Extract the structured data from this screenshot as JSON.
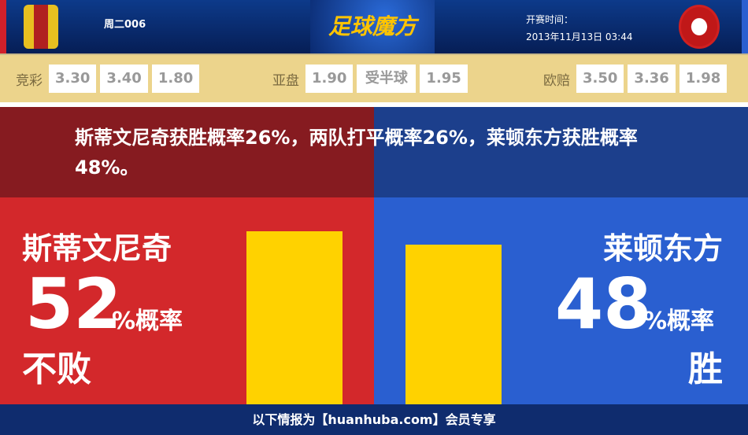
{
  "header": {
    "match_no": "周二006",
    "brand": "足球魔方",
    "time_label": "开赛时间：",
    "time_value": "2013年11月13日 03:44"
  },
  "odds": {
    "jingcai": {
      "label": "竞彩",
      "values": [
        "3.30",
        "3.40",
        "1.80"
      ]
    },
    "yapan": {
      "label": "亚盘",
      "values": [
        "1.90",
        "受半球",
        "1.95"
      ]
    },
    "ouzhou": {
      "label": "欧赔",
      "values": [
        "3.50",
        "3.36",
        "1.98"
      ]
    }
  },
  "summary": "斯蒂文尼奇获胜概率26%，两队打平概率26%，莱顿东方获胜概率48%。",
  "home": {
    "name": "斯蒂文尼奇",
    "percent": "52",
    "percent_label": "%概率",
    "result": "不败",
    "bar_value": 52,
    "color": "#d3282b"
  },
  "away": {
    "name": "莱顿东方",
    "percent": "48",
    "percent_label": "%概率",
    "result": "胜",
    "bar_value": 48,
    "color": "#2a5fd0"
  },
  "bar_color": "#ffd200",
  "footer": "以下情报为【huanhuba.com】会员专享"
}
